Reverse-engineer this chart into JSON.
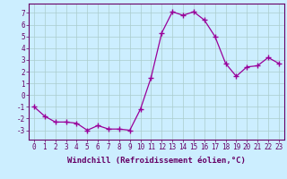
{
  "x": [
    0,
    1,
    2,
    3,
    4,
    5,
    6,
    7,
    8,
    9,
    10,
    11,
    12,
    13,
    14,
    15,
    16,
    17,
    18,
    19,
    20,
    21,
    22,
    23
  ],
  "y": [
    -1,
    -1.8,
    -2.3,
    -2.3,
    -2.4,
    -3.0,
    -2.6,
    -2.9,
    -2.9,
    -3.0,
    -1.2,
    1.5,
    5.3,
    7.1,
    6.8,
    7.1,
    6.4,
    5.0,
    2.7,
    1.6,
    2.4,
    2.5,
    3.2,
    2.7
  ],
  "line_color": "#990099",
  "marker": "+",
  "marker_size": 4,
  "bg_color": "#cceeff",
  "grid_color": "#aacccc",
  "xlabel": "Windchill (Refroidissement éolien,°C)",
  "ylim": [
    -3.8,
    7.8
  ],
  "xlim": [
    -0.5,
    23.5
  ],
  "yticks": [
    -3,
    -2,
    -1,
    0,
    1,
    2,
    3,
    4,
    5,
    6,
    7
  ],
  "xticks": [
    0,
    1,
    2,
    3,
    4,
    5,
    6,
    7,
    8,
    9,
    10,
    11,
    12,
    13,
    14,
    15,
    16,
    17,
    18,
    19,
    20,
    21,
    22,
    23
  ],
  "xtick_labels": [
    "0",
    "1",
    "2",
    "3",
    "4",
    "5",
    "6",
    "7",
    "8",
    "9",
    "10",
    "11",
    "12",
    "13",
    "14",
    "15",
    "16",
    "17",
    "18",
    "19",
    "20",
    "21",
    "22",
    "23"
  ],
  "tick_fontsize": 5.5,
  "label_fontsize": 6.5
}
